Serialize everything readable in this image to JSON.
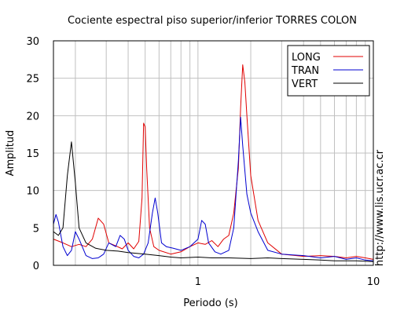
{
  "chart_data": {
    "type": "line",
    "title": "Cociente espectral piso superior/inferior  TORRES COLON",
    "xlabel": "Periodo (s)",
    "ylabel": "Amplitud",
    "xscale": "log",
    "xlim": [
      0.15,
      10
    ],
    "ylim": [
      0,
      30
    ],
    "xticks": [
      {
        "value": 1,
        "label": "1"
      },
      {
        "value": 10,
        "label": "10"
      }
    ],
    "yticks": [
      0,
      5,
      10,
      15,
      20,
      25,
      30
    ],
    "grid": true,
    "legend_position": "top-right",
    "watermark": "http://www.lis.ucr.ac.cr",
    "series": [
      {
        "name": "LONG",
        "color": "#e00000",
        "points": [
          [
            0.15,
            3.5
          ],
          [
            0.17,
            3.0
          ],
          [
            0.19,
            2.5
          ],
          [
            0.21,
            2.8
          ],
          [
            0.23,
            2.5
          ],
          [
            0.25,
            3.5
          ],
          [
            0.27,
            6.3
          ],
          [
            0.29,
            5.5
          ],
          [
            0.31,
            3.0
          ],
          [
            0.34,
            2.6
          ],
          [
            0.37,
            2.2
          ],
          [
            0.4,
            3.0
          ],
          [
            0.43,
            2.2
          ],
          [
            0.46,
            3.2
          ],
          [
            0.48,
            9.0
          ],
          [
            0.49,
            19.0
          ],
          [
            0.5,
            18.5
          ],
          [
            0.51,
            13.0
          ],
          [
            0.53,
            5.0
          ],
          [
            0.56,
            2.5
          ],
          [
            0.6,
            2.0
          ],
          [
            0.7,
            1.5
          ],
          [
            0.8,
            1.8
          ],
          [
            0.9,
            2.5
          ],
          [
            1.0,
            3.0
          ],
          [
            1.1,
            2.8
          ],
          [
            1.2,
            3.3
          ],
          [
            1.3,
            2.5
          ],
          [
            1.4,
            3.5
          ],
          [
            1.5,
            4.0
          ],
          [
            1.6,
            7.0
          ],
          [
            1.7,
            13.0
          ],
          [
            1.75,
            21.0
          ],
          [
            1.8,
            26.8
          ],
          [
            1.85,
            24.5
          ],
          [
            1.9,
            20.0
          ],
          [
            2.0,
            12.0
          ],
          [
            2.2,
            6.0
          ],
          [
            2.5,
            3.0
          ],
          [
            3.0,
            1.5
          ],
          [
            4.0,
            1.2
          ],
          [
            5.0,
            1.3
          ],
          [
            6.0,
            1.2
          ],
          [
            7.0,
            1.0
          ],
          [
            8.0,
            1.2
          ],
          [
            9.0,
            1.0
          ],
          [
            10.0,
            0.8
          ]
        ]
      },
      {
        "name": "TRAN",
        "color": "#0000d0",
        "points": [
          [
            0.15,
            5.5
          ],
          [
            0.155,
            6.8
          ],
          [
            0.16,
            5.8
          ],
          [
            0.17,
            2.5
          ],
          [
            0.18,
            1.3
          ],
          [
            0.19,
            2.0
          ],
          [
            0.2,
            4.5
          ],
          [
            0.21,
            3.5
          ],
          [
            0.23,
            1.3
          ],
          [
            0.25,
            0.9
          ],
          [
            0.27,
            1.0
          ],
          [
            0.29,
            1.5
          ],
          [
            0.31,
            3.0
          ],
          [
            0.34,
            2.5
          ],
          [
            0.36,
            4.0
          ],
          [
            0.38,
            3.5
          ],
          [
            0.4,
            2.0
          ],
          [
            0.43,
            1.2
          ],
          [
            0.46,
            1.0
          ],
          [
            0.49,
            1.5
          ],
          [
            0.52,
            3.0
          ],
          [
            0.55,
            7.0
          ],
          [
            0.57,
            9.0
          ],
          [
            0.59,
            7.0
          ],
          [
            0.62,
            3.0
          ],
          [
            0.66,
            2.5
          ],
          [
            0.72,
            2.3
          ],
          [
            0.8,
            2.0
          ],
          [
            0.9,
            2.5
          ],
          [
            1.0,
            3.5
          ],
          [
            1.05,
            6.0
          ],
          [
            1.1,
            5.5
          ],
          [
            1.15,
            3.0
          ],
          [
            1.25,
            1.8
          ],
          [
            1.35,
            1.5
          ],
          [
            1.5,
            2.0
          ],
          [
            1.6,
            5.0
          ],
          [
            1.7,
            14.0
          ],
          [
            1.75,
            19.8
          ],
          [
            1.8,
            16.0
          ],
          [
            1.9,
            9.5
          ],
          [
            2.0,
            7.0
          ],
          [
            2.2,
            4.5
          ],
          [
            2.5,
            2.0
          ],
          [
            3.0,
            1.5
          ],
          [
            4.0,
            1.3
          ],
          [
            5.0,
            1.0
          ],
          [
            6.0,
            1.2
          ],
          [
            7.0,
            0.8
          ],
          [
            8.0,
            1.0
          ],
          [
            9.0,
            0.7
          ],
          [
            10.0,
            0.6
          ]
        ]
      },
      {
        "name": "VERT",
        "color": "#000000",
        "points": [
          [
            0.15,
            4.5
          ],
          [
            0.16,
            4.0
          ],
          [
            0.17,
            5.0
          ],
          [
            0.18,
            12.0
          ],
          [
            0.19,
            16.5
          ],
          [
            0.2,
            11.0
          ],
          [
            0.21,
            5.0
          ],
          [
            0.23,
            3.0
          ],
          [
            0.26,
            2.3
          ],
          [
            0.3,
            2.0
          ],
          [
            0.35,
            1.9
          ],
          [
            0.4,
            1.7
          ],
          [
            0.5,
            1.5
          ],
          [
            0.6,
            1.3
          ],
          [
            0.7,
            1.1
          ],
          [
            0.8,
            1.0
          ],
          [
            1.0,
            1.1
          ],
          [
            1.2,
            1.0
          ],
          [
            1.5,
            1.0
          ],
          [
            2.0,
            0.9
          ],
          [
            2.5,
            1.0
          ],
          [
            3.0,
            0.9
          ],
          [
            4.0,
            0.8
          ],
          [
            5.0,
            0.7
          ],
          [
            6.0,
            0.6
          ],
          [
            8.0,
            0.6
          ],
          [
            10.0,
            0.5
          ]
        ]
      }
    ]
  }
}
